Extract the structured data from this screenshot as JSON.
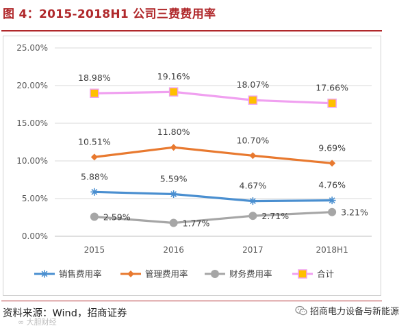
{
  "header": {
    "title": "图 4：2015-2018H1 公司三费费用率"
  },
  "footer": {
    "source": "资料来源：Wind，招商证券",
    "watermark": "∞ 大胆财经",
    "wechat_label": "招商电力设备与新能源"
  },
  "colors": {
    "accent": "#b0282b",
    "sales": "#4a8fd0",
    "management": "#e8792f",
    "finance": "#a6a6a6",
    "total_line": "#f0a0f0",
    "total_marker": "#ffc000"
  },
  "chart_data": {
    "type": "line",
    "categories": [
      "2015",
      "2016",
      "2017",
      "2018H1"
    ],
    "y_ticks": [
      "0.00%",
      "5.00%",
      "10.00%",
      "15.00%",
      "20.00%",
      "25.00%"
    ],
    "ylim": [
      0,
      25
    ],
    "grid": true,
    "legend_position": "bottom",
    "series": [
      {
        "name": "销售费用率",
        "values": [
          5.88,
          5.59,
          4.67,
          4.76
        ],
        "labels": [
          "5.88%",
          "5.59%",
          "4.67%",
          "4.76%"
        ],
        "color": "#4a8fd0",
        "marker": "star",
        "label_position": "above"
      },
      {
        "name": "管理费用率",
        "values": [
          10.51,
          11.8,
          10.7,
          9.69
        ],
        "labels": [
          "10.51%",
          "11.80%",
          "10.70%",
          "9.69%"
        ],
        "color": "#e8792f",
        "marker": "diamond",
        "label_position": "above"
      },
      {
        "name": "财务费用率",
        "values": [
          2.59,
          1.77,
          2.71,
          3.21
        ],
        "labels": [
          "2.59%",
          "1.77%",
          "2.71%",
          "3.21%"
        ],
        "color": "#a6a6a6",
        "marker": "circle",
        "label_position": "right"
      },
      {
        "name": "合计",
        "values": [
          18.98,
          19.16,
          18.07,
          17.66
        ],
        "labels": [
          "18.98%",
          "19.16%",
          "18.07%",
          "17.66%"
        ],
        "color": "#f0a0f0",
        "marker": "square",
        "marker_color": "#ffc000",
        "label_position": "above"
      }
    ]
  }
}
